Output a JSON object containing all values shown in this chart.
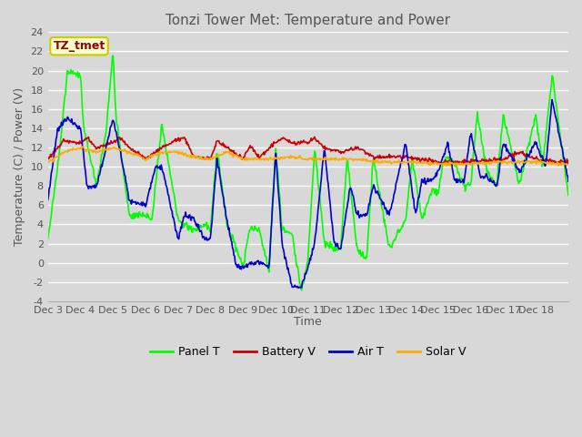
{
  "title": "Tonzi Tower Met: Temperature and Power",
  "xlabel": "Time",
  "ylabel": "Temperature (C) / Power (V)",
  "ylim": [
    -4,
    24
  ],
  "yticks": [
    -4,
    -2,
    0,
    2,
    4,
    6,
    8,
    10,
    12,
    14,
    16,
    18,
    20,
    22,
    24
  ],
  "bg_color": "#d8d8d8",
  "plot_bg_color": "#d8d8d8",
  "grid_color": "#ffffff",
  "legend_label": "TZ_tmet",
  "series_colors": [
    "#00ff00",
    "#cc0000",
    "#0000cc",
    "#ffaa00"
  ],
  "series_lws": [
    1.2,
    1.2,
    1.2,
    1.2
  ],
  "series_labels": [
    "Panel T",
    "Battery V",
    "Air T",
    "Solar V"
  ],
  "xticklabels": [
    "Dec 3",
    "Dec 4",
    "Dec 5",
    "Dec 6",
    "Dec 7",
    "Dec 8",
    "Dec 9",
    "Dec 10",
    "Dec 11",
    "Dec 12",
    "Dec 13",
    "Dec 14",
    "Dec 15",
    "Dec 16",
    "Dec 17",
    "Dec 18"
  ],
  "title_fontsize": 11,
  "tick_fontsize": 8,
  "axis_label_fontsize": 9
}
